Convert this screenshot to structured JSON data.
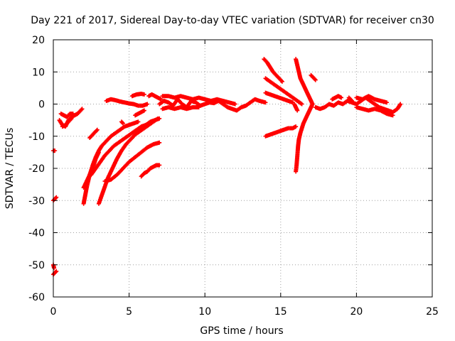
{
  "chart_data": {
    "type": "scatter",
    "title": "Day 221 of 2017, Sidereal Day-to-day VTEC variation (SDTVAR) for receiver cn30",
    "xlabel": "GPS time / hours",
    "ylabel": "SDTVAR / TECUs",
    "xlim": [
      0,
      25
    ],
    "ylim": [
      -60,
      20
    ],
    "x_ticks": [
      "0",
      "5",
      "10",
      "15",
      "20",
      "25"
    ],
    "y_ticks": [
      "-60",
      "-50",
      "-40",
      "-30",
      "-20",
      "-10",
      "0",
      "10",
      "20"
    ],
    "x_tick_values": [
      0,
      5,
      10,
      15,
      20,
      25
    ],
    "y_tick_values": [
      -60,
      -50,
      -40,
      -30,
      -20,
      -10,
      0,
      10,
      20
    ],
    "grid": true,
    "marker": "+",
    "marker_color": "#ff0000",
    "series": [
      {
        "name": "near0_a",
        "x": [
          0.0,
          0.1,
          0.2
        ],
        "y": [
          -53,
          -52.5,
          -52
        ]
      },
      {
        "name": "near0_b",
        "x": [
          0.0,
          0.05
        ],
        "y": [
          -50,
          -51
        ]
      },
      {
        "name": "near0_c",
        "x": [
          0.0,
          0.1,
          0.2
        ],
        "y": [
          -30,
          -29.5,
          -29
        ]
      },
      {
        "name": "near0_d",
        "x": [
          0.0,
          0.1
        ],
        "y": [
          -14.5,
          -14.5
        ]
      },
      {
        "name": "early_a",
        "x": [
          0.4,
          0.6,
          0.8,
          1.0,
          1.2,
          1.4,
          1.6,
          1.8,
          1.9
        ],
        "y": [
          -5,
          -6.5,
          -7,
          -5,
          -4,
          -3.5,
          -3,
          -2,
          -1.5
        ]
      },
      {
        "name": "early_b",
        "x": [
          0.5,
          0.7,
          0.9,
          1.1,
          1.3
        ],
        "y": [
          -3,
          -3.5,
          -4,
          -3,
          -3
        ]
      },
      {
        "name": "early_c",
        "x": [
          0.6,
          0.8,
          1.0,
          1.2
        ],
        "y": [
          -7,
          -6.5,
          -5.5,
          -4.5
        ]
      },
      {
        "name": "arc1",
        "x": [
          2.0,
          2.2,
          2.4,
          2.6,
          2.8,
          3.0,
          3.2,
          3.5,
          3.8,
          4.1,
          4.4,
          4.7,
          5.0,
          5.3,
          5.6
        ],
        "y": [
          -31,
          -26,
          -22,
          -19,
          -16.5,
          -14.5,
          -13,
          -11.5,
          -10,
          -9,
          -8,
          -7,
          -6.5,
          -6,
          -5.5
        ]
      },
      {
        "name": "arc2",
        "x": [
          2.0,
          2.2,
          2.4,
          2.6,
          2.8,
          3.0
        ],
        "y": [
          -26,
          -24,
          -22,
          -20,
          -17,
          -15
        ]
      },
      {
        "name": "arc3",
        "x": [
          3.0,
          3.3,
          3.6,
          3.9,
          4.2,
          4.5,
          4.8,
          5.1,
          5.4,
          5.7,
          6.0,
          6.3,
          6.6,
          6.9
        ],
        "y": [
          -31,
          -27,
          -23,
          -20,
          -17,
          -14.5,
          -12.5,
          -11,
          -9.5,
          -8.5,
          -7.5,
          -6.5,
          -5.5,
          -4.5
        ]
      },
      {
        "name": "arc4",
        "x": [
          2.5,
          2.8,
          3.1,
          3.4,
          3.7,
          4.0,
          4.3,
          4.6,
          4.9,
          5.2,
          5.5,
          5.8,
          6.1,
          6.4,
          6.7,
          7.0
        ],
        "y": [
          -22,
          -20,
          -18,
          -16,
          -14.5,
          -13,
          -12,
          -11,
          -10,
          -9,
          -8,
          -7,
          -6.5,
          -5.5,
          -5,
          -4.5
        ]
      },
      {
        "name": "arc5",
        "x": [
          3.4,
          3.8,
          4.2,
          4.6,
          5.0,
          5.4,
          5.8,
          6.2,
          6.6,
          7.0
        ],
        "y": [
          -24,
          -23.5,
          -22,
          -20,
          -18,
          -16.5,
          -15,
          -13.5,
          -12.5,
          -12
        ]
      },
      {
        "name": "arc6",
        "x": [
          5.8,
          6.0,
          6.2,
          6.4,
          6.6,
          6.8,
          7.0
        ],
        "y": [
          -22.5,
          -21.5,
          -21,
          -20,
          -19.5,
          -19,
          -19
        ]
      },
      {
        "name": "short_a",
        "x": [
          2.4,
          2.6,
          2.8,
          2.9
        ],
        "y": [
          -10.5,
          -9.5,
          -8.5,
          -8
        ]
      },
      {
        "name": "short_b",
        "x": [
          4.5,
          4.6
        ],
        "y": [
          -5.5,
          -6
        ]
      },
      {
        "name": "short_c",
        "x": [
          5.4,
          5.6,
          5.8,
          6.0
        ],
        "y": [
          -3.5,
          -3,
          -2.5,
          -2
        ]
      },
      {
        "name": "day_band_a",
        "x": [
          3.5,
          3.8,
          4.1,
          4.4,
          4.7,
          5.0,
          5.3,
          5.6,
          5.9,
          6.2
        ],
        "y": [
          1,
          1.5,
          1.2,
          0.8,
          0.5,
          0.2,
          0,
          -0.5,
          -0.5,
          0
        ]
      },
      {
        "name": "day_band_b",
        "x": [
          5.2,
          5.5,
          5.8,
          6.0
        ],
        "y": [
          2.5,
          3.0,
          3.2,
          3.0
        ]
      },
      {
        "name": "day_band_c",
        "x": [
          6.3,
          6.5,
          6.7,
          6.9,
          7.1
        ],
        "y": [
          2.5,
          3,
          2.5,
          2,
          1.5
        ]
      },
      {
        "name": "day_band_main",
        "x": [
          7.0,
          7.3,
          7.6,
          7.9,
          8.2,
          8.5,
          8.8,
          9.1,
          9.4,
          9.7,
          10.0,
          10.3,
          10.6,
          10.9,
          11.2,
          11.5,
          11.8,
          12.1,
          12.4,
          12.7,
          13.0,
          13.3,
          13.6,
          14.0
        ],
        "y": [
          0,
          1,
          0.5,
          -0.5,
          1.5,
          0,
          -1,
          1,
          0.5,
          -0.5,
          0,
          0.5,
          0.3,
          1,
          0,
          -1,
          -1.5,
          -2,
          -1,
          -0.5,
          0.5,
          1.5,
          1,
          0.5
        ]
      },
      {
        "name": "day_band_upper",
        "x": [
          7.2,
          7.6,
          8.0,
          8.4,
          8.8,
          9.2,
          9.6,
          10.0,
          10.4,
          10.8,
          11.2,
          11.6,
          12.0
        ],
        "y": [
          2.5,
          2.5,
          2,
          2.5,
          2,
          1.5,
          2,
          1.5,
          1,
          1.5,
          1,
          0.5,
          0
        ]
      },
      {
        "name": "day_band_lower",
        "x": [
          7.2,
          7.6,
          8.0,
          8.4,
          8.8,
          9.2,
          9.6
        ],
        "y": [
          -1.5,
          -1,
          -1.5,
          -1,
          -1.5,
          -1,
          -1
        ]
      },
      {
        "name": "f14_top",
        "x": [
          13.9,
          14.1,
          14.3,
          14.5,
          14.7,
          14.9,
          15.1
        ],
        "y": [
          14,
          13,
          11.5,
          10,
          9,
          8,
          7
        ]
      },
      {
        "name": "f14_mid",
        "x": [
          14.0,
          14.3,
          14.6,
          14.9,
          15.2,
          15.5,
          15.8,
          16.1,
          16.4
        ],
        "y": [
          8,
          7,
          6,
          5,
          4,
          3,
          2,
          1,
          0
        ]
      },
      {
        "name": "f14_low",
        "x": [
          14.0,
          14.3,
          14.6,
          14.9,
          15.2,
          15.5,
          15.8
        ],
        "y": [
          3.5,
          3,
          2.5,
          2,
          1.5,
          1,
          0.5
        ]
      },
      {
        "name": "f14_neg",
        "x": [
          14.0,
          14.3,
          14.6,
          14.9,
          15.2,
          15.5,
          15.8,
          16.0
        ],
        "y": [
          -10,
          -9.5,
          -9,
          -8.5,
          -8,
          -7.5,
          -7.5,
          -7
        ]
      },
      {
        "name": "f16_curve",
        "x": [
          16.0,
          16.05,
          16.1,
          16.15,
          16.2,
          16.3,
          16.4,
          16.5,
          16.6,
          16.7,
          16.8,
          16.9,
          17.0,
          17.1
        ],
        "y": [
          -21,
          -19,
          -16,
          -13,
          -11,
          -9,
          -7.5,
          -6,
          -5,
          -4,
          -3,
          -2,
          -1,
          0
        ]
      },
      {
        "name": "f16_up",
        "x": [
          16.0,
          16.1,
          16.2,
          16.3,
          16.4,
          16.5,
          16.6,
          16.7,
          16.8,
          16.9,
          17.0,
          17.1
        ],
        "y": [
          14,
          12,
          10,
          8,
          7,
          6,
          5,
          4,
          3,
          2,
          1,
          0
        ]
      },
      {
        "name": "f16_drop",
        "x": [
          15.9,
          16.0,
          16.1
        ],
        "y": [
          0,
          -1,
          -2
        ]
      },
      {
        "name": "f17_short",
        "x": [
          17.0,
          17.1,
          17.2,
          17.3
        ],
        "y": [
          9,
          8.5,
          8,
          7.5
        ]
      },
      {
        "name": "evening_a",
        "x": [
          17.3,
          17.6,
          17.9,
          18.2,
          18.5,
          18.8,
          19.1,
          19.4,
          19.7,
          20.0
        ],
        "y": [
          -1,
          -1.5,
          -1,
          0,
          -0.5,
          0.5,
          0,
          1,
          0.5,
          0
        ]
      },
      {
        "name": "evening_b",
        "x": [
          18.4,
          18.6,
          18.8,
          19.0
        ],
        "y": [
          1.5,
          2,
          2.5,
          2
        ]
      },
      {
        "name": "evening_c",
        "x": [
          19.5,
          19.6,
          19.7
        ],
        "y": [
          2,
          1.5,
          1
        ]
      },
      {
        "name": "evening_main",
        "x": [
          20.0,
          20.3,
          20.6,
          20.9,
          21.2,
          21.5,
          21.8,
          22.1,
          22.4,
          22.7,
          22.9
        ],
        "y": [
          0,
          1,
          2,
          1,
          0,
          -1,
          -1.5,
          -2,
          -2.5,
          -1.5,
          0
        ]
      },
      {
        "name": "evening_low",
        "x": [
          20.0,
          20.4,
          20.8,
          21.2,
          21.6,
          22.0,
          22.4
        ],
        "y": [
          -1,
          -1.5,
          -2,
          -1.5,
          -2,
          -3,
          -3.5
        ]
      },
      {
        "name": "evening_up",
        "x": [
          20.0,
          20.4,
          20.8,
          21.2,
          21.6,
          22.0
        ],
        "y": [
          2,
          1.5,
          2.5,
          1.5,
          1,
          0.5
        ]
      }
    ]
  }
}
